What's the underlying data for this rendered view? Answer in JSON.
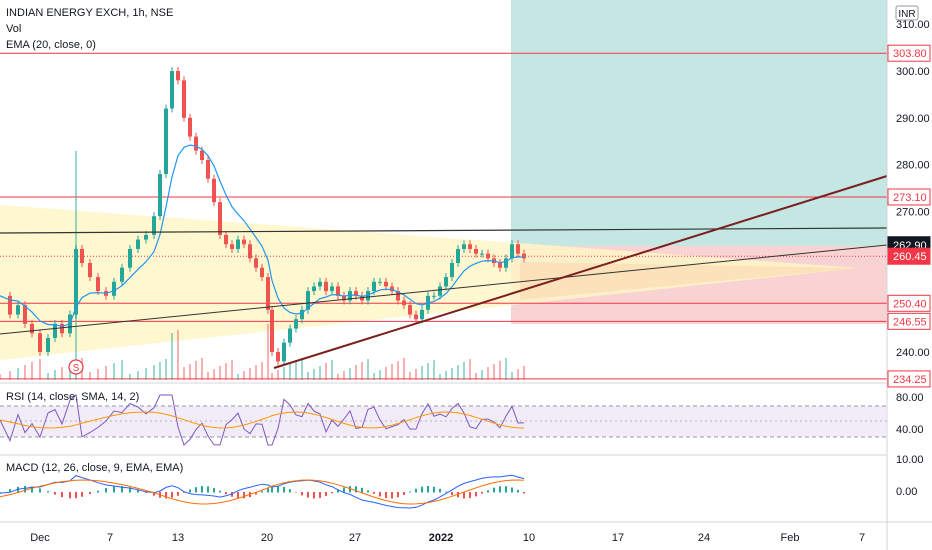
{
  "symbol": {
    "title": "INDIAN ENERGY EXCH, 1h, NSE",
    "vol_label": "Vol",
    "ema_label": "EMA (20, close, 0)",
    "currency": "INR"
  },
  "rsi_panel": {
    "label": "RSI (14, close, SMA, 14, 2)",
    "ticks": [
      "80.00",
      "40.00"
    ]
  },
  "macd_panel": {
    "label": "MACD (12, 26, close, 9, EMA, EMA)",
    "ticks": [
      "10.00",
      "0.00"
    ]
  },
  "price_axis": {
    "ticks": [
      "310.00",
      "300.00",
      "290.00",
      "280.00",
      "270.00",
      "240.00"
    ]
  },
  "level_tags": [
    {
      "value": "303.80",
      "price": 303.8,
      "style": "outline"
    },
    {
      "value": "273.10",
      "price": 273.1,
      "style": "outline"
    },
    {
      "value": "262.90",
      "price": 262.9,
      "style": "dark"
    },
    {
      "value": "260.45",
      "price": 260.45,
      "style": "red"
    },
    {
      "value": "250.40",
      "price": 250.4,
      "style": "outline"
    },
    {
      "value": "246.55",
      "price": 246.55,
      "style": "outline"
    },
    {
      "value": "234.25",
      "price": 234.25,
      "style": "outline-cut"
    }
  ],
  "time_axis": [
    "Dec",
    "7",
    "13",
    "20",
    "27",
    "2022",
    "10",
    "17",
    "24",
    "Feb",
    "7"
  ],
  "event_marker": "S",
  "colors": {
    "up": "#26a69a",
    "down": "#ef5350",
    "ema": "#2196f3",
    "level": "#f23645",
    "trend": "#7b1f1f",
    "rsi": "#7e57c2",
    "profit": "#b2dfdb",
    "loss": "#f8c8c8",
    "triangle": "#fff6c7"
  }
}
